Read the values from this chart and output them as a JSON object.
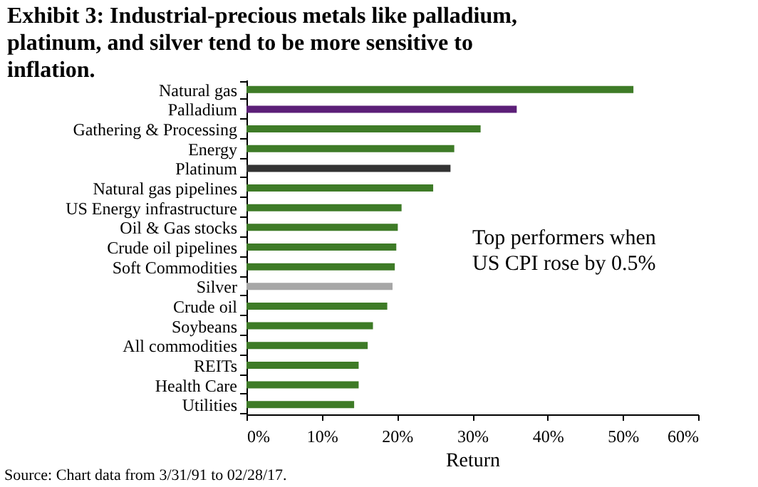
{
  "chart_data": {
    "type": "bar",
    "orientation": "horizontal",
    "title": "Exhibit 3: Industrial-precious metals like palladium, platinum, and silver tend to be more sensitive to inflation.",
    "xlabel": "Return",
    "categories": [
      "Natural gas",
      "Palladium",
      "Gathering & Processing",
      "Energy",
      "Platinum",
      "Natural gas pipelines",
      "US Energy infrastructure",
      "Oil & Gas stocks",
      "Crude oil pipelines",
      "Soft Commodities",
      "Silver",
      "Crude oil",
      "Soybeans",
      "All commodities",
      "REITs",
      "Health Care",
      "Utilities"
    ],
    "values": [
      0.514,
      0.359,
      0.311,
      0.276,
      0.271,
      0.248,
      0.206,
      0.201,
      0.199,
      0.197,
      0.194,
      0.187,
      0.168,
      0.161,
      0.149,
      0.149,
      0.143
    ],
    "colors": [
      "#3e7b27",
      "#5c1f78",
      "#3e7b27",
      "#3e7b27",
      "#333333",
      "#3e7b27",
      "#3e7b27",
      "#3e7b27",
      "#3e7b27",
      "#3e7b27",
      "#a6a6a6",
      "#3e7b27",
      "#3e7b27",
      "#3e7b27",
      "#3e7b27",
      "#3e7b27",
      "#3e7b27"
    ],
    "xlim": [
      0,
      0.6
    ],
    "xticks": [
      {
        "value": 0,
        "label": "0%"
      },
      {
        "value": 0.1,
        "label": "10%"
      },
      {
        "value": 0.2,
        "label": "20%"
      },
      {
        "value": 0.3,
        "label": "30%"
      },
      {
        "value": 0.4,
        "label": "40%"
      },
      {
        "value": 0.5,
        "label": "50%"
      },
      {
        "value": 0.6,
        "label": "60%"
      }
    ],
    "grid": false,
    "legend": false,
    "annotations": [
      "Top performers when US CPI rose by 0.5%",
      "Source: Chart data from 3/31/91 to 02/28/17."
    ]
  }
}
